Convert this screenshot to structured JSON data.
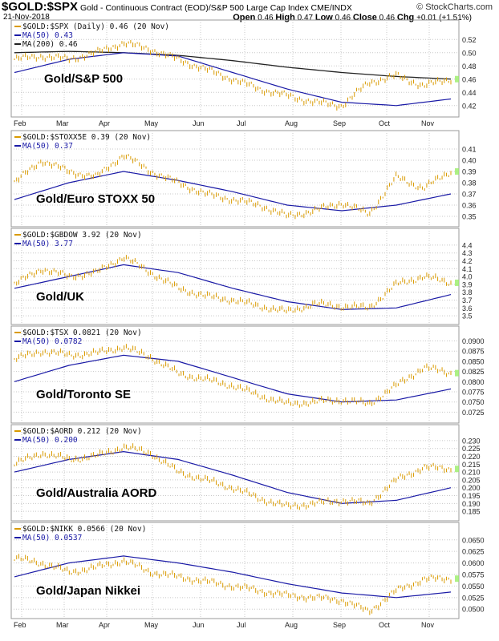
{
  "header": {
    "symbol": "$GOLD:$SPX",
    "description": "Gold - Continuous Contract (EOD)/S&P 500 Large Cap Index",
    "exchange": "CME/INDX",
    "brand": "© StockCharts.com",
    "date": "21-Nov-2018",
    "open_label": "Open",
    "open": "0.46",
    "high_label": "High",
    "high": "0.47",
    "low_label": "Low",
    "low": "0.46",
    "close_label": "Close",
    "close": "0.46",
    "chg_label": "Chg",
    "chg": "+0.01 (+1.51%)"
  },
  "colors": {
    "price": "#d99a00",
    "ma50": "#1a1aa6",
    "ma200": "#222222",
    "grid": "#c8c8c8"
  },
  "chart_data": [
    {
      "type": "line",
      "title": "Gold/S&P 500",
      "legend": [
        "$GOLD:$SPX (Daily) 0.46 (20 Nov)",
        "MA(50) 0.43",
        "MA(200) 0.46"
      ],
      "ylim": [
        0.41,
        0.53
      ],
      "yticks": [
        "0.52",
        "0.50",
        "0.48",
        "0.46",
        "0.44",
        "0.42"
      ],
      "price": [
        0.49,
        0.495,
        0.49,
        0.5,
        0.515,
        0.505,
        0.49,
        0.475,
        0.46,
        0.445,
        0.435,
        0.425,
        0.42,
        0.455,
        0.465,
        0.45,
        0.46
      ],
      "ma50": [
        0.47,
        0.49,
        0.5,
        0.495,
        0.47,
        0.445,
        0.425,
        0.42,
        0.43
      ],
      "ma200": [
        0.5,
        0.502,
        0.5,
        0.496,
        0.488,
        0.478,
        0.47,
        0.464,
        0.46
      ]
    },
    {
      "type": "line",
      "title": "Gold/Euro STOXX 50",
      "legend": [
        "$GOLD:$STOXX5E 0.39 (20 Nov)",
        "MA(50) 0.37"
      ],
      "ylim": [
        0.345,
        0.415
      ],
      "yticks": [
        "0.41",
        "0.40",
        "0.39",
        "0.38",
        "0.37",
        "0.36",
        "0.35"
      ],
      "price": [
        0.38,
        0.4,
        0.39,
        0.385,
        0.405,
        0.39,
        0.38,
        0.37,
        0.365,
        0.36,
        0.35,
        0.355,
        0.362,
        0.352,
        0.385,
        0.375,
        0.39
      ],
      "ma50": [
        0.365,
        0.38,
        0.39,
        0.382,
        0.372,
        0.36,
        0.355,
        0.36,
        0.37
      ]
    },
    {
      "type": "line",
      "title": "Gold/UK",
      "legend": [
        "$GOLD:$GBDOW 3.92 (20 Nov)",
        "MA(50) 3.77"
      ],
      "ylim": [
        3.45,
        4.45
      ],
      "yticks": [
        "4.4",
        "4.3",
        "4.2",
        "4.1",
        "4.0",
        "3.9",
        "3.8",
        "3.7",
        "3.6",
        "3.5"
      ],
      "price": [
        3.9,
        4.1,
        4.0,
        4.05,
        4.25,
        4.05,
        3.85,
        3.75,
        3.7,
        3.62,
        3.55,
        3.65,
        3.62,
        3.6,
        3.9,
        4.0,
        3.92
      ],
      "ma50": [
        3.85,
        4.0,
        4.15,
        4.05,
        3.85,
        3.68,
        3.58,
        3.6,
        3.77
      ]
    },
    {
      "type": "line",
      "title": "Gold/Toronto SE",
      "legend": [
        "$GOLD:$TSX 0.0821 (20 Nov)",
        "MA(50) 0.0782"
      ],
      "ylim": [
        0.071,
        0.0905
      ],
      "yticks": [
        "0.0900",
        "0.0875",
        "0.0850",
        "0.0825",
        "0.0800",
        "0.0775",
        "0.0750",
        "0.0725"
      ],
      "price": [
        0.0855,
        0.0875,
        0.0865,
        0.087,
        0.0885,
        0.086,
        0.082,
        0.0805,
        0.079,
        0.0765,
        0.0745,
        0.075,
        0.0755,
        0.0745,
        0.079,
        0.0835,
        0.0821
      ],
      "ma50": [
        0.08,
        0.084,
        0.0865,
        0.085,
        0.081,
        0.077,
        0.075,
        0.0755,
        0.0782
      ]
    },
    {
      "type": "line",
      "title": "Gold/Australia AORD",
      "legend": [
        "$GOLD:$AORD 0.212 (20 Nov)",
        "MA(50) 0.200"
      ],
      "ylim": [
        0.182,
        0.232
      ],
      "yticks": [
        "0.230",
        "0.225",
        "0.220",
        "0.215",
        "0.210",
        "0.205",
        "0.200",
        "0.195",
        "0.190",
        "0.185"
      ],
      "price": [
        0.215,
        0.222,
        0.218,
        0.22,
        0.226,
        0.222,
        0.21,
        0.205,
        0.2,
        0.193,
        0.188,
        0.19,
        0.192,
        0.19,
        0.205,
        0.213,
        0.212
      ],
      "ma50": [
        0.21,
        0.218,
        0.223,
        0.218,
        0.208,
        0.197,
        0.19,
        0.192,
        0.2
      ]
    },
    {
      "type": "line",
      "title": "Gold/Japan Nikkei",
      "legend": [
        "$GOLD:$NIKK 0.0566 (20 Nov)",
        "MA(50) 0.0537"
      ],
      "ylim": [
        0.049,
        0.066
      ],
      "yticks": [
        "0.0650",
        "0.0625",
        "0.0600",
        "0.0575",
        "0.0550",
        "0.0525",
        "0.0500"
      ],
      "price": [
        0.061,
        0.06,
        0.058,
        0.059,
        0.0605,
        0.058,
        0.057,
        0.056,
        0.055,
        0.054,
        0.053,
        0.0525,
        0.052,
        0.0495,
        0.054,
        0.0565,
        0.0566
      ],
      "ma50": [
        0.057,
        0.06,
        0.0615,
        0.06,
        0.058,
        0.0555,
        0.0535,
        0.0525,
        0.0537
      ]
    }
  ],
  "x_labels": [
    "Feb",
    "Mar",
    "Apr",
    "May",
    "Jun",
    "Jul",
    "Aug",
    "Sep",
    "Oct",
    "Nov"
  ]
}
